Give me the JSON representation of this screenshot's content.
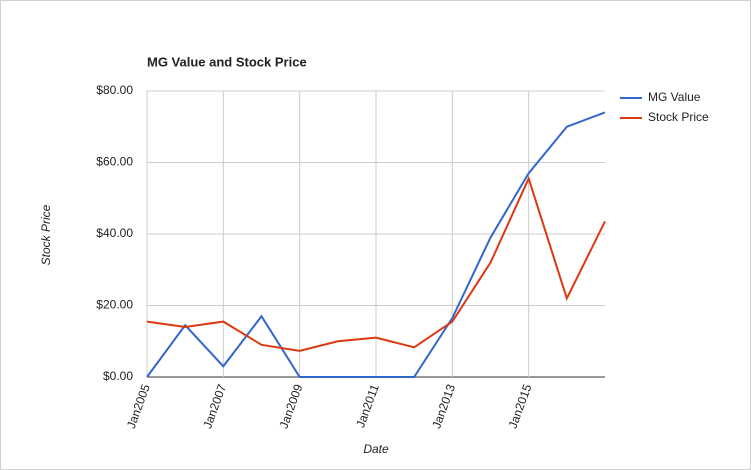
{
  "chart_data": {
    "type": "line",
    "title": "MG Value and Stock Price",
    "x_label": "Date",
    "y_label": "Stock Price",
    "categories": [
      "Jan2005",
      null,
      "Jan2007",
      null,
      "Jan2009",
      null,
      "Jan2011",
      null,
      "Jan2013",
      null,
      "Jan2015",
      null,
      null
    ],
    "series": [
      {
        "name": "MG Value",
        "color": "#3366cc",
        "values": [
          0,
          14.5,
          3,
          17,
          0,
          0,
          0,
          0,
          16.5,
          39,
          57,
          70,
          74
        ]
      },
      {
        "name": "Stock Price",
        "color": "#dc3912",
        "values": [
          15.5,
          14,
          15.5,
          9,
          7.3,
          10,
          11,
          8.3,
          15.5,
          32,
          55.5,
          22,
          43.5
        ]
      }
    ],
    "ylim": [
      0,
      80
    ],
    "yticks": [
      {
        "value": 0,
        "label": "$0.00"
      },
      {
        "value": 20,
        "label": "$20.00"
      },
      {
        "value": 40,
        "label": "$40.00"
      },
      {
        "value": 60,
        "label": "$60.00"
      },
      {
        "value": 80,
        "label": "$80.00"
      }
    ],
    "grid": true,
    "legend": "right"
  }
}
